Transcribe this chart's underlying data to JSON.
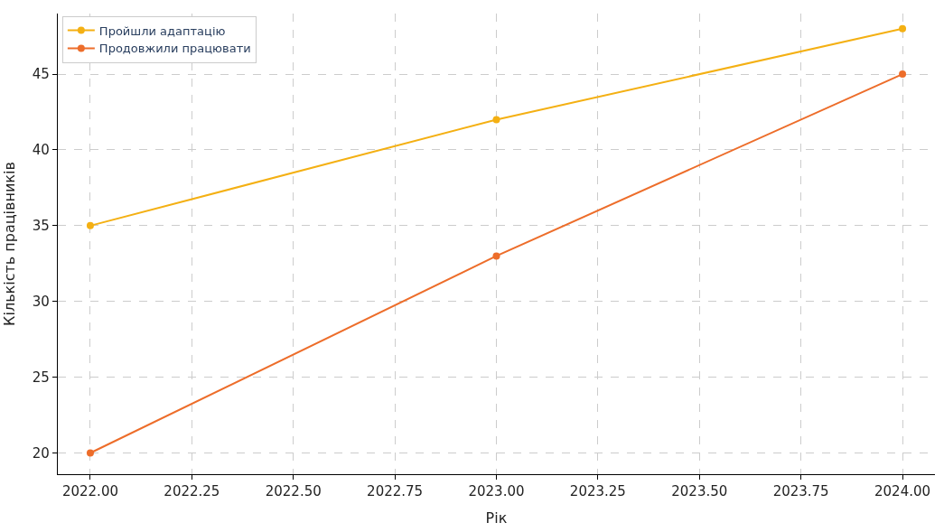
{
  "chart_data": {
    "type": "line",
    "xlabel": "Рік",
    "ylabel": "Кількість працівників",
    "x": [
      2022,
      2023,
      2024
    ],
    "series": [
      {
        "name": "Пройшли адаптацію",
        "color": "#f4b013",
        "values": [
          35,
          42,
          48
        ]
      },
      {
        "name": "Продовжили працювати",
        "color": "#ed6d2a",
        "values": [
          20,
          33,
          45
        ]
      }
    ],
    "xlim": [
      2021.92,
      2024.08
    ],
    "xticks": [
      {
        "value": 2022,
        "label": "2022.00"
      },
      {
        "value": 2022.25,
        "label": "2022.25"
      },
      {
        "value": 2022.5,
        "label": "2022.50"
      },
      {
        "value": 2022.75,
        "label": "2022.75"
      },
      {
        "value": 2023,
        "label": "2023.00"
      },
      {
        "value": 2023.25,
        "label": "2023.25"
      },
      {
        "value": 2023.5,
        "label": "2023.50"
      },
      {
        "value": 2023.75,
        "label": "2023.75"
      },
      {
        "value": 2024,
        "label": "2024.00"
      }
    ],
    "ylim": [
      18.6,
      49
    ],
    "yticks": [
      20,
      25,
      30,
      35,
      40,
      45
    ],
    "grid": true,
    "legend": "top left",
    "marker": "circle",
    "line_style": "solid"
  }
}
